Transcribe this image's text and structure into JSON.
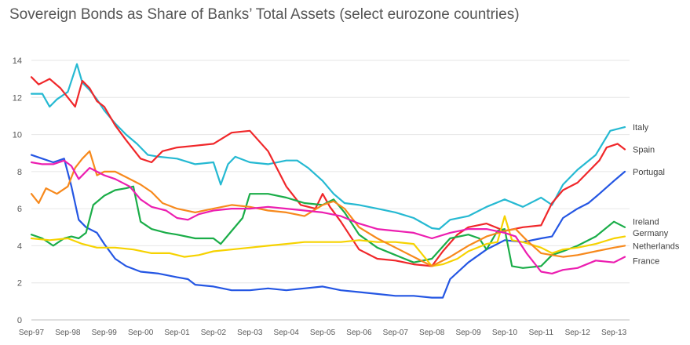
{
  "chart_data": {
    "type": "line",
    "title": "Sovereign Bonds as Share of Banks’ Total Assets (select eurozone countries)",
    "xlabel": "",
    "ylabel": "",
    "ylim": [
      0,
      14
    ],
    "yticks": [
      "0",
      "2",
      "4",
      "6",
      "8",
      "10",
      "12",
      "14"
    ],
    "xticks": [
      "Sep-97",
      "Sep-98",
      "Sep-99",
      "Sep-00",
      "Sep-01",
      "Sep-02",
      "Sep-03",
      "Sep-04",
      "Sep-05",
      "Sep-06",
      "Sep-07",
      "Sep-08",
      "Sep-09",
      "Sep-10",
      "Sep-11",
      "Sep-12",
      "Sep-13"
    ],
    "grid": "horizontal",
    "legend": "right (end-of-line labels)",
    "series": [
      {
        "name": "Italy",
        "color": "#25B9D2",
        "points": [
          [
            0,
            12.2
          ],
          [
            0.3,
            12.2
          ],
          [
            0.5,
            11.5
          ],
          [
            0.7,
            11.9
          ],
          [
            1.0,
            12.3
          ],
          [
            1.2,
            13.5
          ],
          [
            1.25,
            13.8
          ],
          [
            1.4,
            12.8
          ],
          [
            1.6,
            12.4
          ],
          [
            1.8,
            11.9
          ],
          [
            2.0,
            11.3
          ],
          [
            2.3,
            10.6
          ],
          [
            2.6,
            10.0
          ],
          [
            2.9,
            9.5
          ],
          [
            3.2,
            8.9
          ],
          [
            3.5,
            8.8
          ],
          [
            4.0,
            8.7
          ],
          [
            4.5,
            8.4
          ],
          [
            5.0,
            8.5
          ],
          [
            5.2,
            7.3
          ],
          [
            5.4,
            8.4
          ],
          [
            5.6,
            8.8
          ],
          [
            6.0,
            8.5
          ],
          [
            6.5,
            8.4
          ],
          [
            7.0,
            8.6
          ],
          [
            7.3,
            8.6
          ],
          [
            7.6,
            8.2
          ],
          [
            8.0,
            7.5
          ],
          [
            8.3,
            6.8
          ],
          [
            8.6,
            6.3
          ],
          [
            9.0,
            6.2
          ],
          [
            9.5,
            6.0
          ],
          [
            10.0,
            5.8
          ],
          [
            10.5,
            5.5
          ],
          [
            11.0,
            4.95
          ],
          [
            11.2,
            4.9
          ],
          [
            11.5,
            5.4
          ],
          [
            12.0,
            5.6
          ],
          [
            12.5,
            6.1
          ],
          [
            13.0,
            6.5
          ],
          [
            13.5,
            6.1
          ],
          [
            14.0,
            6.6
          ],
          [
            14.3,
            6.2
          ],
          [
            14.6,
            7.3
          ],
          [
            15.0,
            8.1
          ],
          [
            15.5,
            8.9
          ],
          [
            15.9,
            10.2
          ],
          [
            16.3,
            10.4
          ]
        ]
      },
      {
        "name": "Spain",
        "color": "#F0272A",
        "points": [
          [
            0,
            13.1
          ],
          [
            0.2,
            12.7
          ],
          [
            0.5,
            13.0
          ],
          [
            0.8,
            12.5
          ],
          [
            1.0,
            12.0
          ],
          [
            1.2,
            11.5
          ],
          [
            1.4,
            12.9
          ],
          [
            1.6,
            12.5
          ],
          [
            1.8,
            11.8
          ],
          [
            2.0,
            11.5
          ],
          [
            2.3,
            10.5
          ],
          [
            2.6,
            9.7
          ],
          [
            3.0,
            8.7
          ],
          [
            3.3,
            8.5
          ],
          [
            3.6,
            9.1
          ],
          [
            4.0,
            9.3
          ],
          [
            4.5,
            9.4
          ],
          [
            5.0,
            9.5
          ],
          [
            5.5,
            10.1
          ],
          [
            6.0,
            10.2
          ],
          [
            6.5,
            9.1
          ],
          [
            7.0,
            7.2
          ],
          [
            7.4,
            6.2
          ],
          [
            7.8,
            6.0
          ],
          [
            8.0,
            6.8
          ],
          [
            8.2,
            6.1
          ],
          [
            8.5,
            5.3
          ],
          [
            9.0,
            3.8
          ],
          [
            9.5,
            3.3
          ],
          [
            10.0,
            3.2
          ],
          [
            10.5,
            3.0
          ],
          [
            11.0,
            2.9
          ],
          [
            11.3,
            3.7
          ],
          [
            11.7,
            4.6
          ],
          [
            12.0,
            5.0
          ],
          [
            12.5,
            5.2
          ],
          [
            13.0,
            4.8
          ],
          [
            13.5,
            5.0
          ],
          [
            14.0,
            5.1
          ],
          [
            14.3,
            6.3
          ],
          [
            14.6,
            7.0
          ],
          [
            15.0,
            7.4
          ],
          [
            15.3,
            8.0
          ],
          [
            15.6,
            8.6
          ],
          [
            15.8,
            9.3
          ],
          [
            16.1,
            9.5
          ],
          [
            16.3,
            9.2
          ]
        ]
      },
      {
        "name": "Portugal",
        "color": "#2456E3",
        "points": [
          [
            0,
            8.9
          ],
          [
            0.3,
            8.7
          ],
          [
            0.6,
            8.5
          ],
          [
            0.9,
            8.7
          ],
          [
            1.1,
            7.2
          ],
          [
            1.3,
            5.4
          ],
          [
            1.5,
            5.0
          ],
          [
            1.8,
            4.7
          ],
          [
            2.0,
            4.1
          ],
          [
            2.3,
            3.3
          ],
          [
            2.6,
            2.9
          ],
          [
            3.0,
            2.6
          ],
          [
            3.5,
            2.5
          ],
          [
            4.0,
            2.3
          ],
          [
            4.3,
            2.2
          ],
          [
            4.5,
            1.9
          ],
          [
            5.0,
            1.8
          ],
          [
            5.5,
            1.6
          ],
          [
            6.0,
            1.6
          ],
          [
            6.5,
            1.7
          ],
          [
            7.0,
            1.6
          ],
          [
            7.5,
            1.7
          ],
          [
            8.0,
            1.8
          ],
          [
            8.5,
            1.6
          ],
          [
            9.0,
            1.5
          ],
          [
            9.5,
            1.4
          ],
          [
            10.0,
            1.3
          ],
          [
            10.5,
            1.3
          ],
          [
            11.0,
            1.2
          ],
          [
            11.3,
            1.2
          ],
          [
            11.5,
            2.2
          ],
          [
            12.0,
            3.1
          ],
          [
            12.5,
            3.8
          ],
          [
            13.0,
            4.3
          ],
          [
            13.5,
            4.2
          ],
          [
            14.0,
            4.4
          ],
          [
            14.3,
            4.5
          ],
          [
            14.6,
            5.5
          ],
          [
            15.0,
            6.0
          ],
          [
            15.3,
            6.3
          ],
          [
            15.6,
            6.8
          ],
          [
            16.0,
            7.5
          ],
          [
            16.3,
            8.0
          ]
        ]
      },
      {
        "name": "Ireland",
        "color": "#1AAD48",
        "points": [
          [
            0,
            4.6
          ],
          [
            0.3,
            4.4
          ],
          [
            0.6,
            4.0
          ],
          [
            0.9,
            4.4
          ],
          [
            1.1,
            4.5
          ],
          [
            1.3,
            4.4
          ],
          [
            1.5,
            4.7
          ],
          [
            1.7,
            6.2
          ],
          [
            2.0,
            6.7
          ],
          [
            2.3,
            7.0
          ],
          [
            2.6,
            7.1
          ],
          [
            2.8,
            7.2
          ],
          [
            3.0,
            5.3
          ],
          [
            3.3,
            4.9
          ],
          [
            3.7,
            4.7
          ],
          [
            4.0,
            4.6
          ],
          [
            4.5,
            4.4
          ],
          [
            5.0,
            4.4
          ],
          [
            5.2,
            4.1
          ],
          [
            5.5,
            4.8
          ],
          [
            5.8,
            5.5
          ],
          [
            6.0,
            6.8
          ],
          [
            6.5,
            6.8
          ],
          [
            7.0,
            6.6
          ],
          [
            7.5,
            6.3
          ],
          [
            8.0,
            6.2
          ],
          [
            8.3,
            6.5
          ],
          [
            8.6,
            5.8
          ],
          [
            9.0,
            4.6
          ],
          [
            9.5,
            3.9
          ],
          [
            10.0,
            3.5
          ],
          [
            10.5,
            3.1
          ],
          [
            11.0,
            3.3
          ],
          [
            11.5,
            4.4
          ],
          [
            12.0,
            4.6
          ],
          [
            12.3,
            4.4
          ],
          [
            12.5,
            3.8
          ],
          [
            12.8,
            4.8
          ],
          [
            13.0,
            4.9
          ],
          [
            13.2,
            2.9
          ],
          [
            13.5,
            2.8
          ],
          [
            14.0,
            2.9
          ],
          [
            14.3,
            3.5
          ],
          [
            14.6,
            3.7
          ],
          [
            15.0,
            4.0
          ],
          [
            15.5,
            4.5
          ],
          [
            16.0,
            5.3
          ],
          [
            16.3,
            5.0
          ]
        ]
      },
      {
        "name": "Germany",
        "color": "#F6D200",
        "points": [
          [
            0,
            4.4
          ],
          [
            0.5,
            4.3
          ],
          [
            1.0,
            4.4
          ],
          [
            1.4,
            4.1
          ],
          [
            1.8,
            3.9
          ],
          [
            2.3,
            3.9
          ],
          [
            2.8,
            3.8
          ],
          [
            3.3,
            3.6
          ],
          [
            3.8,
            3.6
          ],
          [
            4.2,
            3.4
          ],
          [
            4.6,
            3.5
          ],
          [
            5.0,
            3.7
          ],
          [
            5.5,
            3.8
          ],
          [
            6.0,
            3.9
          ],
          [
            6.5,
            4.0
          ],
          [
            7.0,
            4.1
          ],
          [
            7.5,
            4.2
          ],
          [
            8.0,
            4.2
          ],
          [
            8.5,
            4.2
          ],
          [
            9.0,
            4.3
          ],
          [
            9.5,
            4.2
          ],
          [
            10.0,
            4.2
          ],
          [
            10.5,
            4.1
          ],
          [
            11.0,
            2.9
          ],
          [
            11.3,
            3.0
          ],
          [
            11.7,
            3.3
          ],
          [
            12.0,
            3.7
          ],
          [
            12.5,
            4.1
          ],
          [
            12.8,
            4.2
          ],
          [
            13.0,
            5.6
          ],
          [
            13.2,
            4.3
          ],
          [
            13.5,
            4.2
          ],
          [
            14.0,
            3.9
          ],
          [
            14.3,
            3.6
          ],
          [
            14.6,
            3.8
          ],
          [
            15.0,
            3.9
          ],
          [
            15.5,
            4.1
          ],
          [
            16.0,
            4.4
          ],
          [
            16.3,
            4.5
          ]
        ]
      },
      {
        "name": "Netherlands",
        "color": "#F7891C",
        "points": [
          [
            0,
            6.8
          ],
          [
            0.2,
            6.3
          ],
          [
            0.4,
            7.1
          ],
          [
            0.7,
            6.8
          ],
          [
            1.0,
            7.2
          ],
          [
            1.2,
            8.2
          ],
          [
            1.4,
            8.7
          ],
          [
            1.6,
            9.1
          ],
          [
            1.8,
            7.8
          ],
          [
            2.0,
            8.0
          ],
          [
            2.3,
            8.0
          ],
          [
            2.6,
            7.7
          ],
          [
            3.0,
            7.3
          ],
          [
            3.3,
            6.9
          ],
          [
            3.6,
            6.3
          ],
          [
            4.0,
            6.0
          ],
          [
            4.5,
            5.8
          ],
          [
            5.0,
            6.0
          ],
          [
            5.5,
            6.2
          ],
          [
            6.0,
            6.1
          ],
          [
            6.5,
            5.9
          ],
          [
            7.0,
            5.8
          ],
          [
            7.5,
            5.6
          ],
          [
            8.0,
            6.2
          ],
          [
            8.3,
            6.4
          ],
          [
            8.6,
            6.0
          ],
          [
            9.0,
            5.0
          ],
          [
            9.5,
            4.4
          ],
          [
            10.0,
            3.9
          ],
          [
            10.5,
            3.4
          ],
          [
            11.0,
            2.9
          ],
          [
            11.5,
            3.4
          ],
          [
            12.0,
            4.0
          ],
          [
            12.5,
            4.5
          ],
          [
            13.0,
            4.8
          ],
          [
            13.3,
            4.9
          ],
          [
            13.6,
            4.3
          ],
          [
            14.0,
            3.6
          ],
          [
            14.3,
            3.5
          ],
          [
            14.6,
            3.4
          ],
          [
            15.0,
            3.5
          ],
          [
            15.5,
            3.7
          ],
          [
            16.0,
            3.9
          ],
          [
            16.3,
            4.0
          ]
        ]
      },
      {
        "name": "France",
        "color": "#EC1EB0",
        "points": [
          [
            0,
            8.5
          ],
          [
            0.3,
            8.4
          ],
          [
            0.6,
            8.4
          ],
          [
            0.9,
            8.6
          ],
          [
            1.1,
            8.3
          ],
          [
            1.3,
            7.6
          ],
          [
            1.6,
            8.2
          ],
          [
            2.0,
            7.8
          ],
          [
            2.3,
            7.6
          ],
          [
            2.7,
            7.2
          ],
          [
            3.0,
            6.5
          ],
          [
            3.3,
            6.1
          ],
          [
            3.7,
            5.9
          ],
          [
            4.0,
            5.5
          ],
          [
            4.3,
            5.4
          ],
          [
            4.6,
            5.7
          ],
          [
            5.0,
            5.9
          ],
          [
            5.5,
            6.0
          ],
          [
            6.0,
            6.0
          ],
          [
            6.5,
            6.1
          ],
          [
            7.0,
            6.0
          ],
          [
            7.5,
            5.9
          ],
          [
            8.0,
            5.8
          ],
          [
            8.5,
            5.6
          ],
          [
            9.0,
            5.2
          ],
          [
            9.5,
            4.9
          ],
          [
            10.0,
            4.8
          ],
          [
            10.5,
            4.7
          ],
          [
            11.0,
            4.4
          ],
          [
            11.5,
            4.7
          ],
          [
            12.0,
            4.9
          ],
          [
            12.5,
            4.9
          ],
          [
            13.0,
            4.7
          ],
          [
            13.3,
            4.5
          ],
          [
            13.6,
            3.6
          ],
          [
            14.0,
            2.6
          ],
          [
            14.3,
            2.5
          ],
          [
            14.6,
            2.7
          ],
          [
            15.0,
            2.8
          ],
          [
            15.5,
            3.2
          ],
          [
            16.0,
            3.1
          ],
          [
            16.3,
            3.4
          ]
        ]
      }
    ]
  }
}
